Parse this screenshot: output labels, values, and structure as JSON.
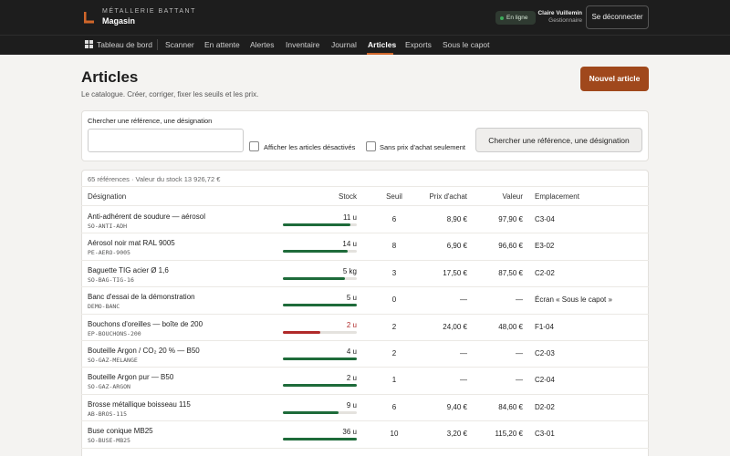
{
  "header": {
    "brand": "MÉTALLERIE BATTANT",
    "app": "Magasin",
    "status": "En ligne",
    "user": "Claire Vuillemin",
    "role": "Gestionnaire",
    "logout": "Se déconnecter"
  },
  "nav": {
    "items": [
      "Tableau de bord",
      "Scanner",
      "En attente",
      "Alertes",
      "Inventaire",
      "Journal",
      "Articles",
      "Exports",
      "Sous le capot"
    ],
    "active": 6
  },
  "page": {
    "title": "Articles",
    "subtitle": "Le catalogue. Créer, corriger, fixer les seuils et les prix.",
    "new_button": "Nouvel article"
  },
  "search": {
    "label": "Chercher une référence, une désignation",
    "show_disabled": "Afficher les articles désactivés",
    "no_price": "Sans prix d'achat seulement",
    "button": "Chercher une référence, une désignation"
  },
  "table": {
    "summary": "65 références · Valeur du stock 13 926,72 €",
    "columns": [
      "Désignation",
      "Stock",
      "Seuil",
      "Prix d'achat",
      "Valeur",
      "Emplacement"
    ],
    "rows": [
      {
        "name": "Anti-adhérent de soudure — aérosol",
        "code": "SO-ANTI-ADH",
        "stock": {
          "value": 11,
          "label": "11 u"
        },
        "seuil": 6,
        "price": "8,90 €",
        "valeur": "97,90 €",
        "location": "C3-04"
      },
      {
        "name": "Aérosol noir mat RAL 9005",
        "code": "PE-AERO-9005",
        "stock": {
          "value": 14,
          "label": "14 u"
        },
        "seuil": 8,
        "price": "6,90 €",
        "valeur": "96,60 €",
        "location": "E3-02"
      },
      {
        "name": "Baguette TIG acier Ø 1,6",
        "code": "SO-BAG-TIG-16",
        "stock": {
          "value": 5,
          "label": "5 kg"
        },
        "seuil": 3,
        "price": "17,50 €",
        "valeur": "87,50 €",
        "location": "C2-02"
      },
      {
        "name": "Banc d'essai de la démonstration",
        "code": "DEMO-BANC",
        "stock": {
          "value": 5,
          "label": "5 u"
        },
        "seuil": 0,
        "price": "—",
        "valeur": "—",
        "location": "Écran « Sous le capot »"
      },
      {
        "name": "Bouchons d'oreilles — boîte de 200",
        "code": "EP-BOUCHONS-200",
        "stock": {
          "value": 2,
          "label": "2 u"
        },
        "seuil": 2,
        "price": "24,00 €",
        "valeur": "48,00 €",
        "location": "F1-04"
      },
      {
        "name": "Bouteille Argon / CO₂ 20 % — B50",
        "code": "SO-GAZ-MELANGE",
        "stock": {
          "value": 4,
          "label": "4 u"
        },
        "seuil": 2,
        "price": "—",
        "valeur": "—",
        "location": "C2-03"
      },
      {
        "name": "Bouteille Argon pur — B50",
        "code": "SO-GAZ-ARGON",
        "stock": {
          "value": 2,
          "label": "2 u"
        },
        "seuil": 1,
        "price": "—",
        "valeur": "—",
        "location": "C2-04"
      },
      {
        "name": "Brosse métallique boisseau 115",
        "code": "AB-BROS-115",
        "stock": {
          "value": 9,
          "label": "9 u"
        },
        "seuil": 6,
        "price": "9,40 €",
        "valeur": "84,60 €",
        "location": "D2-02"
      },
      {
        "name": "Buse conique MB25",
        "code": "SO-BUSE-MB25",
        "stock": {
          "value": 36,
          "label": "36 u"
        },
        "seuil": 10,
        "price": "3,20 €",
        "valeur": "115,20 €",
        "location": "C3-01"
      }
    ]
  }
}
